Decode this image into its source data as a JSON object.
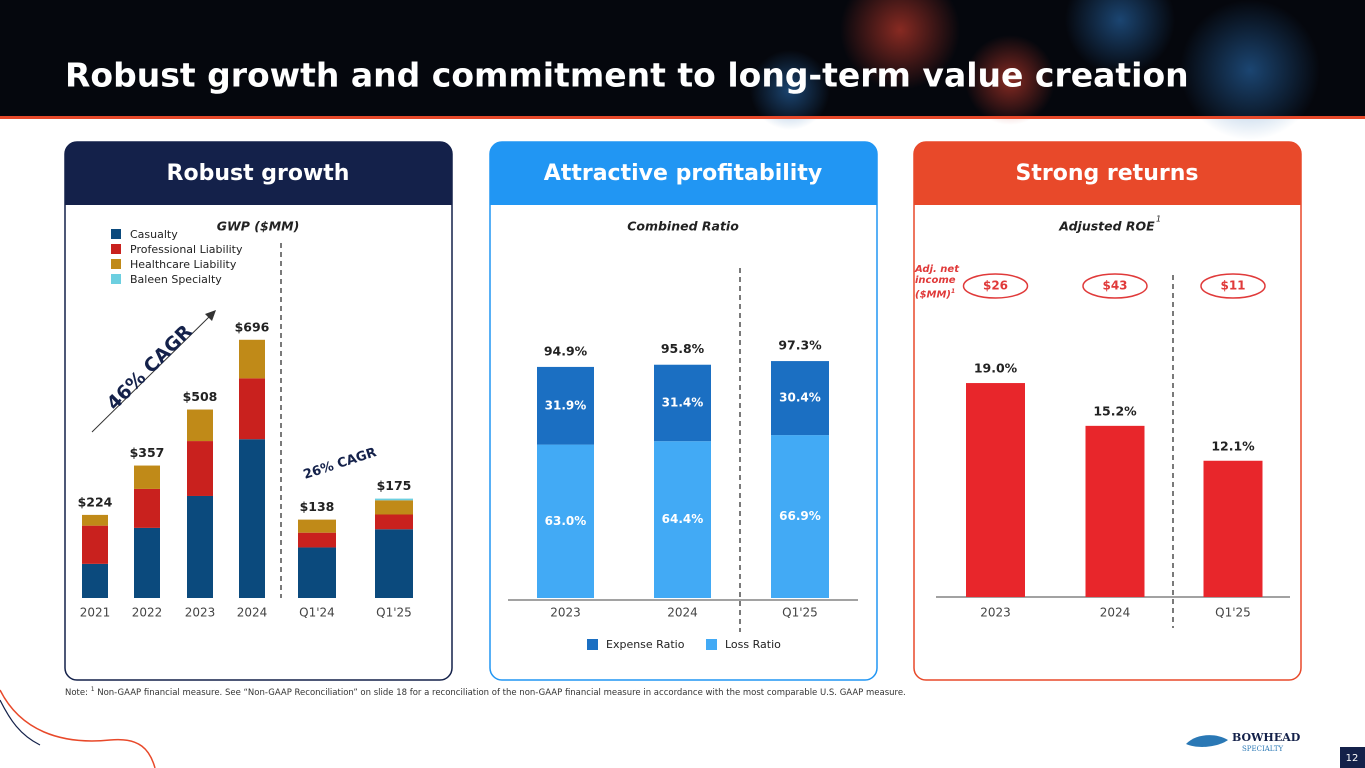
{
  "title": "Robust growth and commitment to long-term value creation",
  "chart_data": [
    {
      "type": "stacked_bar",
      "header": "Robust growth",
      "title": "GWP ($MM)",
      "categories": [
        "2021",
        "2022",
        "2023",
        "2024",
        "Q1'24",
        "Q1'25"
      ],
      "series": [
        {
          "name": "Casualty",
          "color": "#0b4a7d",
          "values": [
            92,
            189,
            275,
            428,
            89,
            121
          ]
        },
        {
          "name": "Professional Liability",
          "color": "#c9211e",
          "values": [
            103,
            105,
            148,
            164,
            26,
            26
          ]
        },
        {
          "name": "Healthcare Liability",
          "color": "#c08a18",
          "values": [
            29,
            63,
            85,
            104,
            23,
            25
          ]
        },
        {
          "name": "Baleen Specialty",
          "color": "#6ccfe0",
          "values": [
            0,
            0,
            0,
            0,
            0,
            3
          ]
        }
      ],
      "totals": [
        224,
        357,
        508,
        696,
        138,
        175
      ],
      "total_labels": [
        "$224",
        "$357",
        "$508",
        "$696",
        "$138",
        "$175"
      ],
      "annotations": [
        "46% CAGR",
        "26% CAGR"
      ]
    },
    {
      "type": "stacked_bar",
      "header": "Attractive profitability",
      "title": "Combined Ratio",
      "categories": [
        "2023",
        "2024",
        "Q1'25"
      ],
      "series": [
        {
          "name": "Expense Ratio",
          "color": "#1b6fc2",
          "values": [
            31.9,
            31.4,
            30.4
          ],
          "value_labels": [
            "31.9%",
            "31.4%",
            "30.4%"
          ]
        },
        {
          "name": "Loss Ratio",
          "color": "#42aaf5",
          "values": [
            63.0,
            64.4,
            66.9
          ],
          "value_labels": [
            "63.0%",
            "64.4%",
            "66.9%"
          ]
        }
      ],
      "totals": [
        94.9,
        95.8,
        97.3
      ],
      "total_labels": [
        "94.9%",
        "95.8%",
        "97.3%"
      ]
    },
    {
      "type": "bar",
      "header": "Strong returns",
      "title": "Adjusted ROE",
      "title_note": "1",
      "categories": [
        "2023",
        "2024",
        "Q1'25"
      ],
      "values": [
        19.0,
        15.2,
        12.1
      ],
      "value_labels": [
        "19.0%",
        "15.2%",
        "12.1%"
      ],
      "color": "#e8262b",
      "net_income_label": "Adj. net income ($MM)",
      "net_income_note": "1",
      "net_income": [
        26,
        43,
        11
      ],
      "net_income_labels": [
        "$26",
        "$43",
        "$11"
      ]
    }
  ],
  "note": {
    "label": "Note:",
    "ref": "1",
    "text": "Non-GAAP financial measure. See “Non-GAAP Reconciliation” on slide 18 for a reconciliation of the non-GAAP financial measure in accordance with the most comparable U.S. GAAP measure."
  },
  "logo": {
    "name": "BOWHEAD",
    "sub": "SPECIALTY"
  },
  "page_number": 12
}
